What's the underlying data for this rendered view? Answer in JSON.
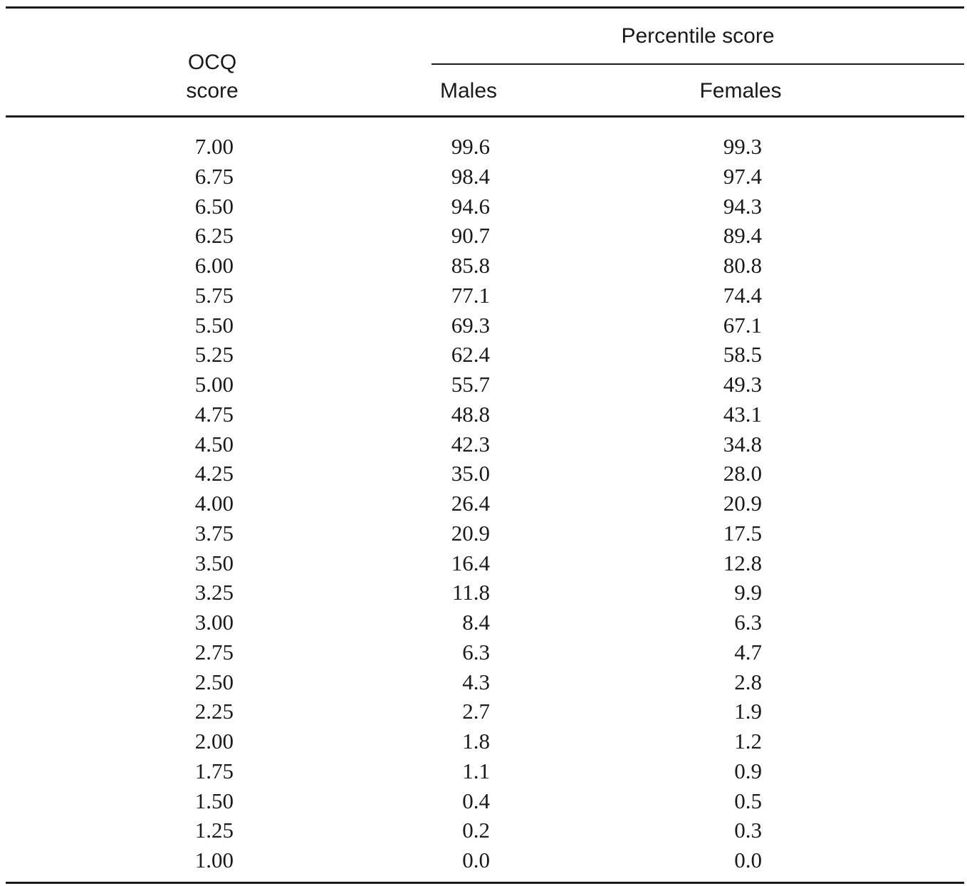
{
  "table": {
    "header": {
      "ocq_line1": "OCQ",
      "ocq_line2": "score",
      "spanner": "Percentile score",
      "males": "Males",
      "females": "Females"
    },
    "rows": [
      {
        "ocq": "7.00",
        "males": "99.6",
        "females": "99.3"
      },
      {
        "ocq": "6.75",
        "males": "98.4",
        "females": "97.4"
      },
      {
        "ocq": "6.50",
        "males": "94.6",
        "females": "94.3"
      },
      {
        "ocq": "6.25",
        "males": "90.7",
        "females": "89.4"
      },
      {
        "ocq": "6.00",
        "males": "85.8",
        "females": "80.8"
      },
      {
        "ocq": "5.75",
        "males": "77.1",
        "females": "74.4"
      },
      {
        "ocq": "5.50",
        "males": "69.3",
        "females": "67.1"
      },
      {
        "ocq": "5.25",
        "males": "62.4",
        "females": "58.5"
      },
      {
        "ocq": "5.00",
        "males": "55.7",
        "females": "49.3"
      },
      {
        "ocq": "4.75",
        "males": "48.8",
        "females": "43.1"
      },
      {
        "ocq": "4.50",
        "males": "42.3",
        "females": "34.8"
      },
      {
        "ocq": "4.25",
        "males": "35.0",
        "females": "28.0"
      },
      {
        "ocq": "4.00",
        "males": "26.4",
        "females": "20.9"
      },
      {
        "ocq": "3.75",
        "males": "20.9",
        "females": "17.5"
      },
      {
        "ocq": "3.50",
        "males": "16.4",
        "females": "12.8"
      },
      {
        "ocq": "3.25",
        "males": "11.8",
        "females": "9.9"
      },
      {
        "ocq": "3.00",
        "males": "8.4",
        "females": "6.3"
      },
      {
        "ocq": "2.75",
        "males": "6.3",
        "females": "4.7"
      },
      {
        "ocq": "2.50",
        "males": "4.3",
        "females": "2.8"
      },
      {
        "ocq": "2.25",
        "males": "2.7",
        "females": "1.9"
      },
      {
        "ocq": "2.00",
        "males": "1.8",
        "females": "1.2"
      },
      {
        "ocq": "1.75",
        "males": "1.1",
        "females": "0.9"
      },
      {
        "ocq": "1.50",
        "males": "0.4",
        "females": "0.5"
      },
      {
        "ocq": "1.25",
        "males": "0.2",
        "females": "0.3"
      },
      {
        "ocq": "1.00",
        "males": "0.0",
        "females": "0.0"
      }
    ]
  }
}
